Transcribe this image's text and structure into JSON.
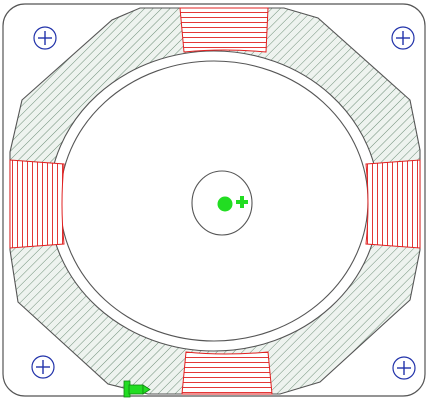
{
  "drawing": {
    "stroke_color": "#555555",
    "core_hatch_color": "#6f8f79",
    "winding_color": "#e02020",
    "marker_color": "#22dd22",
    "background": "#ffffff",
    "mounting_holes": 4,
    "windings": 4,
    "icons": [
      "mounting-hole-plus-icon",
      "center-dot-icon",
      "small-arrow-icon",
      "connector-terminal-icon"
    ]
  }
}
